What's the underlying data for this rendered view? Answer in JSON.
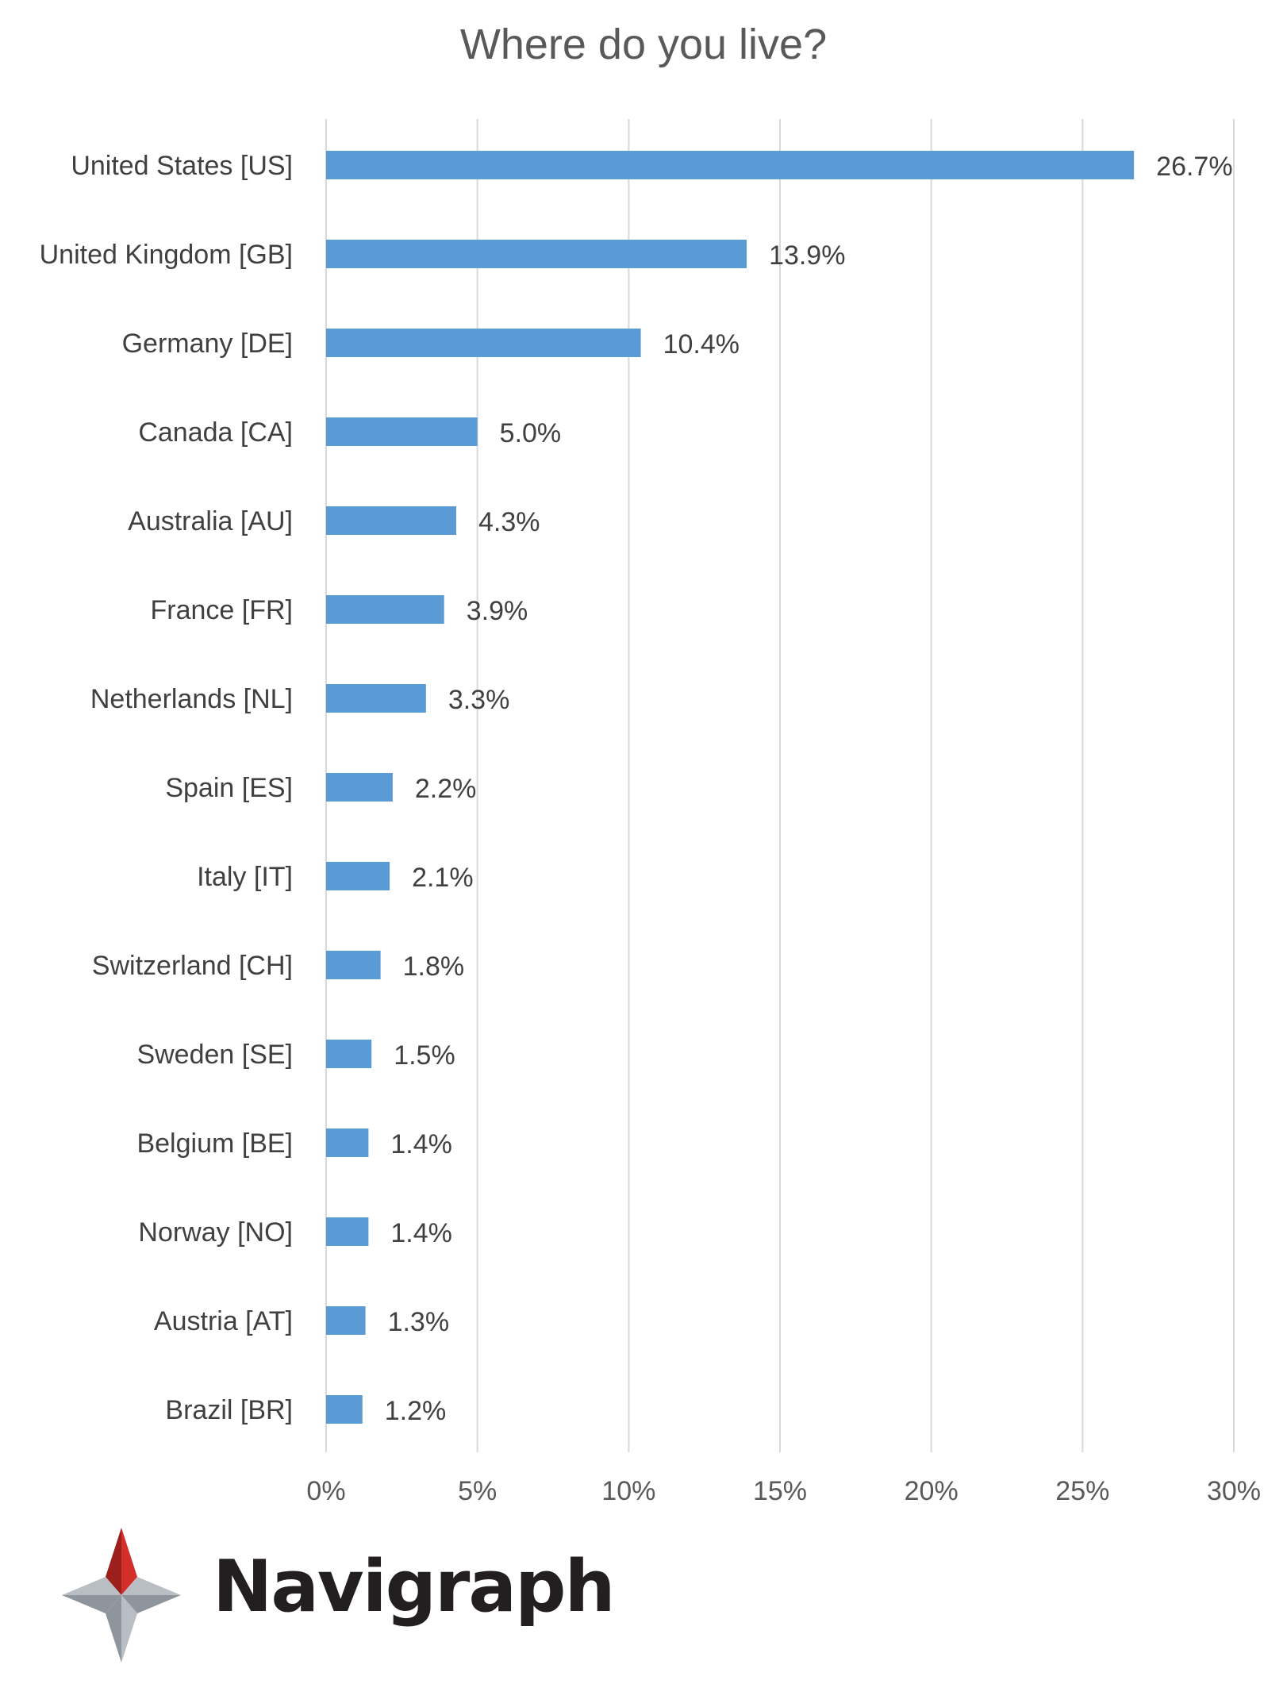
{
  "chart_data": {
    "type": "bar",
    "orientation": "horizontal",
    "title": "Where do you live?",
    "xlabel": "",
    "ylabel": "",
    "categories": [
      "United States [US]",
      "United Kingdom [GB]",
      "Germany [DE]",
      "Canada [CA]",
      "Australia [AU]",
      "France [FR]",
      "Netherlands [NL]",
      "Spain [ES]",
      "Italy [IT]",
      "Switzerland [CH]",
      "Sweden [SE]",
      "Belgium [BE]",
      "Norway [NO]",
      "Austria [AT]",
      "Brazil [BR]"
    ],
    "values": [
      26.7,
      13.9,
      10.4,
      5.0,
      4.3,
      3.9,
      3.3,
      2.2,
      2.1,
      1.8,
      1.5,
      1.4,
      1.4,
      1.3,
      1.2
    ],
    "value_labels": [
      "26.7%",
      "13.9%",
      "10.4%",
      "5.0%",
      "4.3%",
      "3.9%",
      "3.3%",
      "2.2%",
      "2.1%",
      "1.8%",
      "1.5%",
      "1.4%",
      "1.4%",
      "1.3%",
      "1.2%"
    ],
    "xlim": [
      0,
      30
    ],
    "xticks": [
      0,
      5,
      10,
      15,
      20,
      25,
      30
    ],
    "xtick_labels": [
      "0%",
      "5%",
      "10%",
      "15%",
      "20%",
      "25%",
      "30%"
    ],
    "grid": true,
    "legend": "none",
    "colors": {
      "bar": "#5b9bd5",
      "grid": "#d9d9d9",
      "axis_text": "#595959",
      "title_text": "#595959",
      "label_text": "#404040"
    }
  },
  "brand": {
    "name": "Navigraph",
    "logo_icon": "compass-star-icon",
    "colors": {
      "red": "#d32f2a",
      "dark_red": "#9c1f1b",
      "gray": "#b9bec4",
      "dark_gray": "#8f959c",
      "text": "#231f20"
    }
  }
}
